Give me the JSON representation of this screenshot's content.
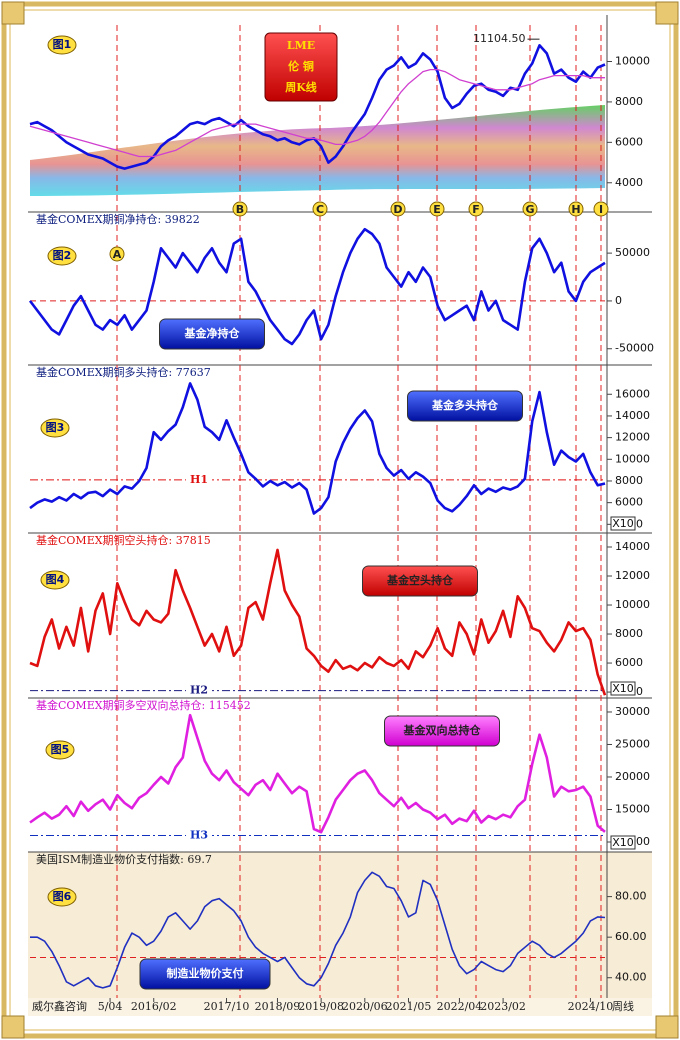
{
  "source": "威尔鑫咨询",
  "event_markers": [
    "A",
    "B",
    "C",
    "D",
    "E",
    "F",
    "G",
    "H",
    "I"
  ],
  "chart_data": [
    {
      "type": "line",
      "label": "图1",
      "title_lines": [
        "LME",
        "伦 铜",
        "周K线"
      ],
      "annotation": {
        "text": "11104.50",
        "value": 11104.5
      },
      "ylim": [
        2900,
        12300
      ],
      "yticks": [
        4000,
        6000,
        8000,
        10000
      ],
      "series": [
        {
          "color": "#1010e0",
          "values": [
            6900,
            7000,
            6800,
            6600,
            6300,
            6000,
            5800,
            5600,
            5400,
            5300,
            5200,
            5000,
            4800,
            4700,
            4800,
            4900,
            5000,
            5300,
            5800,
            6100,
            6300,
            6600,
            6900,
            7000,
            6900,
            7100,
            7200,
            7000,
            6800,
            7100,
            6800,
            6600,
            6400,
            6300,
            6100,
            6200,
            6000,
            5900,
            6100,
            6200,
            5800,
            5000,
            5300,
            5800,
            6400,
            6900,
            7400,
            8200,
            9100,
            9600,
            9800,
            10200,
            9700,
            9900,
            10400,
            10100,
            9500,
            8200,
            7700,
            7900,
            8400,
            8800,
            8900,
            8600,
            8500,
            8300,
            8700,
            8600,
            9400,
            9900,
            10800,
            10400,
            9400,
            9600,
            9200,
            9000,
            9500,
            9200,
            9700,
            9850
          ]
        },
        {
          "color": "#d040d0",
          "values": [
            6800,
            6700,
            6600,
            6500,
            6400,
            6300,
            6200,
            6100,
            6000,
            5900,
            5800,
            5700,
            5600,
            5500,
            5400,
            5300,
            5300,
            5300,
            5400,
            5500,
            5600,
            5800,
            6000,
            6200,
            6400,
            6600,
            6700,
            6800,
            6900,
            6900,
            6900,
            6900,
            6800,
            6700,
            6600,
            6500,
            6400,
            6300,
            6200,
            6200,
            6100,
            6000,
            5900,
            5900,
            6000,
            6100,
            6300,
            6600,
            7000,
            7500,
            8000,
            8500,
            8900,
            9200,
            9500,
            9600,
            9600,
            9500,
            9300,
            9100,
            9000,
            8900,
            8800,
            8700,
            8600,
            8600,
            8600,
            8700,
            8800,
            8900,
            9100,
            9200,
            9300,
            9300,
            9300,
            9300,
            9300,
            9200,
            9200,
            9200
          ]
        }
      ]
    },
    {
      "type": "line",
      "label": "图2",
      "title": "基金COMEX期铜净持仓: 39822",
      "caption": "基金净持仓",
      "ylim": [
        -67000,
        93000
      ],
      "yticks": [
        -50000,
        0,
        50000
      ],
      "reference_value": 0,
      "series": [
        {
          "color": "#1010e0",
          "values": [
            0,
            -10000,
            -20000,
            -30000,
            -35000,
            -20000,
            -5000,
            5000,
            -10000,
            -25000,
            -30000,
            -20000,
            -25000,
            -15000,
            -30000,
            -20000,
            -10000,
            20000,
            55000,
            45000,
            35000,
            50000,
            40000,
            30000,
            45000,
            55000,
            40000,
            30000,
            60000,
            65000,
            20000,
            10000,
            -5000,
            -20000,
            -30000,
            -40000,
            -45000,
            -35000,
            -20000,
            -10000,
            -40000,
            -25000,
            5000,
            30000,
            50000,
            65000,
            75000,
            70000,
            60000,
            35000,
            25000,
            15000,
            30000,
            20000,
            35000,
            25000,
            -5000,
            -20000,
            -15000,
            -10000,
            -5000,
            -20000,
            10000,
            -10000,
            0,
            -20000,
            -25000,
            -30000,
            20000,
            55000,
            65000,
            50000,
            30000,
            40000,
            10000,
            0,
            20000,
            30000,
            35000,
            39822
          ]
        }
      ]
    },
    {
      "type": "line",
      "label": "图3",
      "title": "基金COMEX期铜多头持仓: 77637",
      "caption": "基金多头持仓",
      "axis_multiplier": "X10",
      "ylim": [
        3200,
        18700
      ],
      "yticks": [
        4000,
        6000,
        8000,
        10000,
        12000,
        14000,
        16000
      ],
      "reference_lines": [
        {
          "label": "H1",
          "value": 8100
        }
      ],
      "series": [
        {
          "color": "#1010e0",
          "values": [
            5500,
            6000,
            6300,
            6100,
            6500,
            6200,
            6800,
            6400,
            6900,
            7000,
            6600,
            7200,
            6800,
            7500,
            7300,
            8000,
            9200,
            12500,
            11800,
            12600,
            13200,
            14800,
            17000,
            15500,
            13000,
            12500,
            11800,
            13600,
            12000,
            10500,
            8800,
            8200,
            7500,
            8000,
            7600,
            7900,
            7400,
            7800,
            7200,
            5000,
            5500,
            6500,
            9800,
            11500,
            12800,
            13800,
            14500,
            13500,
            10500,
            9200,
            8500,
            9000,
            8200,
            8800,
            8400,
            7800,
            6200,
            5500,
            5200,
            5800,
            6600,
            7600,
            6800,
            7300,
            7000,
            7400,
            7200,
            7500,
            8200,
            13500,
            16200,
            12500,
            9500,
            10800,
            10200,
            9800,
            10500,
            8800,
            7600,
            7764
          ]
        }
      ]
    },
    {
      "type": "line",
      "label": "图4",
      "title": "基金COMEX期铜空头持仓: 37815",
      "caption": "基金空头持仓",
      "axis_multiplier": "X10",
      "ylim": [
        3590,
        14965
      ],
      "yticks": [
        4000,
        6000,
        8000,
        10000,
        12000,
        14000
      ],
      "reference_lines": [
        {
          "label": "H2",
          "value": 4100
        }
      ],
      "series": [
        {
          "color": "#e01010",
          "values": [
            6000,
            5800,
            7800,
            9000,
            7000,
            8500,
            7200,
            9800,
            6800,
            9600,
            10800,
            8000,
            11500,
            10200,
            9000,
            8600,
            9600,
            9000,
            8800,
            9400,
            12400,
            11000,
            9800,
            8500,
            7200,
            8000,
            6800,
            8500,
            6500,
            7200,
            9800,
            10200,
            9000,
            11500,
            13800,
            11000,
            10000,
            9200,
            7000,
            6500,
            5800,
            5400,
            6200,
            5600,
            5800,
            5500,
            6000,
            5700,
            6400,
            6000,
            5800,
            6200,
            5600,
            6800,
            6400,
            7200,
            8400,
            7000,
            6500,
            8800,
            8000,
            6600,
            9000,
            7400,
            8200,
            9600,
            7800,
            10600,
            9800,
            8400,
            8200,
            7400,
            6800,
            7600,
            8800,
            8200,
            8400,
            7600,
            5200,
            3782
          ]
        }
      ]
    },
    {
      "type": "line",
      "label": "图5",
      "title": "基金COMEX期铜多空双向总持仓: 115452",
      "caption": "基金双向总持仓",
      "axis_multiplier": "X10",
      "ylim": [
        8460,
        32150
      ],
      "yticks": [
        10000,
        15000,
        20000,
        25000,
        30000
      ],
      "reference_lines": [
        {
          "label": "H3",
          "value": 11000
        }
      ],
      "series": [
        {
          "color": "#e020e0",
          "values": [
            13000,
            13800,
            14500,
            13600,
            14200,
            15500,
            14000,
            16200,
            14800,
            15800,
            16500,
            15000,
            17200,
            16000,
            15200,
            16800,
            17500,
            18800,
            20000,
            19000,
            21500,
            23000,
            29500,
            26000,
            22500,
            20500,
            19500,
            21000,
            19200,
            18200,
            17200,
            18800,
            19500,
            18000,
            20500,
            19000,
            17500,
            18500,
            17800,
            12000,
            11500,
            13800,
            16500,
            18000,
            19500,
            20500,
            21000,
            19500,
            17500,
            16500,
            15500,
            16800,
            15200,
            16000,
            15000,
            14500,
            13500,
            14200,
            12800,
            13600,
            13200,
            14800,
            13000,
            14000,
            13500,
            14200,
            13800,
            15500,
            16500,
            22000,
            26500,
            23000,
            17000,
            18500,
            17800,
            18000,
            18500,
            17000,
            12500,
            11545
          ]
        }
      ]
    },
    {
      "type": "line",
      "label": "图6",
      "title": "美国ISM制造业物价支付指数: 69.7",
      "caption": "制造业物价支付",
      "x_axis_note": "周线",
      "ylim": [
        30,
        102
      ],
      "yticks": [
        {
          "value": 40,
          "label": "40.00"
        },
        {
          "value": 60,
          "label": "60.00"
        },
        {
          "value": 80,
          "label": "80.00"
        }
      ],
      "reference_value": 50,
      "categories": [
        null,
        null,
        null,
        null,
        null,
        null,
        null,
        null,
        null,
        null,
        null,
        "5/04",
        null,
        null,
        null,
        null,
        null,
        "2016/02",
        null,
        null,
        null,
        null,
        null,
        null,
        null,
        null,
        null,
        "2017/10",
        null,
        null,
        null,
        null,
        null,
        null,
        "2018/09",
        null,
        null,
        null,
        null,
        null,
        "2019/08",
        null,
        null,
        null,
        null,
        null,
        "2020/06",
        null,
        null,
        null,
        null,
        null,
        "2021/05",
        null,
        null,
        null,
        null,
        null,
        null,
        "2022/04",
        null,
        null,
        null,
        null,
        null,
        "2023/02",
        null,
        null,
        null,
        null,
        null,
        null,
        null,
        null,
        null,
        null,
        null,
        "2024/10",
        null,
        null
      ],
      "series": [
        {
          "color": "#2030c0",
          "values": [
            60,
            60,
            58,
            53,
            46,
            38,
            36,
            38,
            40,
            36,
            35,
            36,
            45,
            55,
            62,
            60,
            56,
            58,
            63,
            70,
            72,
            68,
            64,
            68,
            75,
            78,
            79,
            76,
            73,
            68,
            60,
            55,
            52,
            50,
            48,
            50,
            45,
            40,
            37,
            36,
            40,
            47,
            56,
            62,
            70,
            82,
            88,
            92,
            90,
            85,
            84,
            78,
            70,
            72,
            88,
            86,
            78,
            66,
            54,
            46,
            42,
            44,
            48,
            46,
            44,
            43,
            46,
            52,
            55,
            58,
            56,
            52,
            50,
            52,
            55,
            58,
            62,
            68,
            70,
            69.7
          ]
        }
      ]
    }
  ]
}
